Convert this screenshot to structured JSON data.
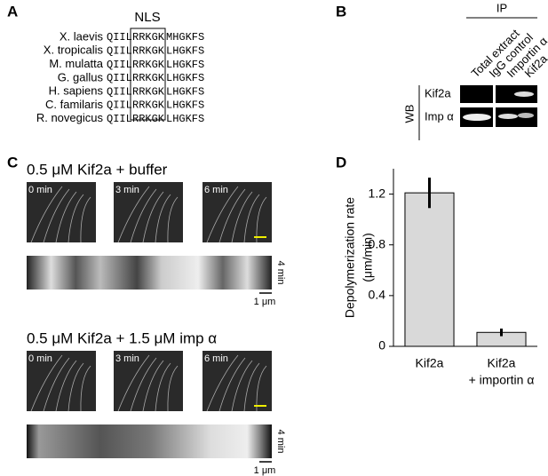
{
  "panel_a": {
    "label": "A",
    "header": "NLS",
    "rows": [
      {
        "species": "X. laevis",
        "seq": [
          "QIIL",
          "RRKGK",
          "MHGKFS"
        ]
      },
      {
        "species": "X. tropicalis",
        "seq": [
          "QIIL",
          "RRKGK",
          "LHGKFS"
        ]
      },
      {
        "species": "M. mulatta",
        "seq": [
          "QIIL",
          "RRKGK",
          "LHGKFS"
        ]
      },
      {
        "species": "G. gallus",
        "seq": [
          "QIIL",
          "RRKGK",
          "LHGKFS"
        ]
      },
      {
        "species": "H. sapiens",
        "seq": [
          "QIIL",
          "RRKGK",
          "LHGKFS"
        ]
      },
      {
        "species": "C. familaris",
        "seq": [
          "QIIL",
          "RRKGK",
          "LHGKFS"
        ]
      },
      {
        "species": "R. novegicus",
        "seq": [
          "QIIL",
          "RRKGK",
          "LHGKFS"
        ]
      }
    ]
  },
  "panel_b": {
    "label": "B",
    "ip_label": "IP",
    "lanes": [
      "Total extract",
      "IgG control",
      "Importin α",
      "Kif2a"
    ],
    "wb_label": "WB",
    "rows": [
      "Kif2a",
      "Imp α"
    ]
  },
  "panel_c": {
    "label": "C",
    "conditions": [
      {
        "title": "0.5 μM Kif2a + buffer",
        "times": [
          "0 min",
          "3 min",
          "6 min"
        ],
        "time_scale": "4 min",
        "length_scale": "1 μm"
      },
      {
        "title": "0.5 μM Kif2a + 1.5 μM imp α",
        "times": [
          "0 min",
          "3 min",
          "6 min"
        ],
        "time_scale": "4 min",
        "length_scale": "1 μm"
      }
    ]
  },
  "panel_d": {
    "label": "D",
    "chart_data": {
      "type": "bar",
      "y_label": [
        "Depolymerization rate",
        "(μm/min)"
      ],
      "categories": [
        [
          "Kif2a"
        ],
        [
          "Kif2a",
          "+ importin α"
        ]
      ],
      "values": [
        1.21,
        0.11
      ],
      "errors": [
        0.12,
        0.03
      ],
      "color": "#d9d9d9",
      "ylim": [
        0,
        1.4
      ],
      "yticks": [
        0,
        0.4,
        0.8,
        1.2
      ]
    }
  }
}
